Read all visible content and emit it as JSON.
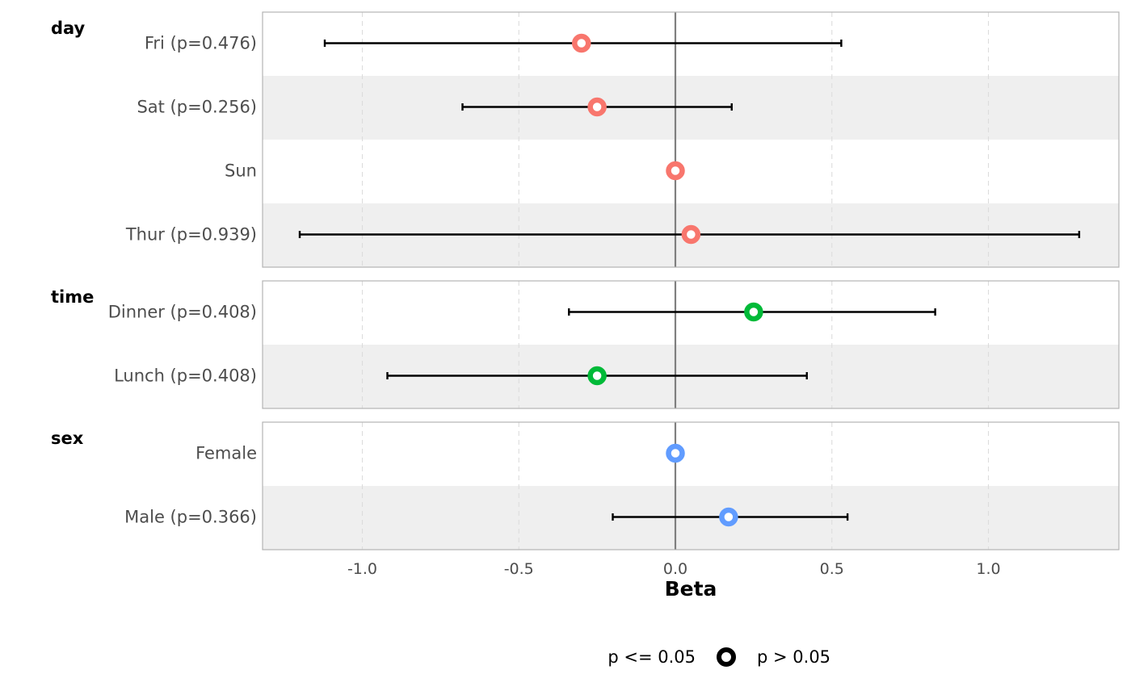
{
  "chart_data": {
    "type": "scatter",
    "subtype": "forest",
    "xlabel": "Beta",
    "xlim": [
      -1.32,
      1.42
    ],
    "x_ticks": [
      -1.0,
      -0.5,
      0.0,
      0.5,
      1.0
    ],
    "x_tick_labels": [
      "-1.0",
      "-0.5",
      "0.0",
      "0.5",
      "1.0"
    ],
    "reference_line": 0,
    "grid": "vertical dashed",
    "alternating_row_shading": true,
    "groups": [
      {
        "name": "day",
        "color": "#f8766d",
        "rows": [
          {
            "label": "Fri (p=0.476)",
            "estimate": -0.3,
            "lower": -1.12,
            "upper": 0.53
          },
          {
            "label": "Sat (p=0.256)",
            "estimate": -0.25,
            "lower": -0.68,
            "upper": 0.18
          },
          {
            "label": "Sun",
            "estimate": 0.0,
            "lower": null,
            "upper": null
          },
          {
            "label": "Thur (p=0.939)",
            "estimate": 0.05,
            "lower": -1.2,
            "upper": 1.29
          }
        ]
      },
      {
        "name": "time",
        "color": "#00ba38",
        "rows": [
          {
            "label": "Dinner (p=0.408)",
            "estimate": 0.25,
            "lower": -0.34,
            "upper": 0.83
          },
          {
            "label": "Lunch (p=0.408)",
            "estimate": -0.25,
            "lower": -0.92,
            "upper": 0.42
          }
        ]
      },
      {
        "name": "sex",
        "color": "#619cff",
        "rows": [
          {
            "label": "Female",
            "estimate": 0.0,
            "lower": null,
            "upper": null
          },
          {
            "label": "Male (p=0.366)",
            "estimate": 0.17,
            "lower": -0.2,
            "upper": 0.55
          }
        ]
      }
    ],
    "legend": {
      "position": "bottom",
      "items": [
        {
          "label": "p <= 0.05",
          "marker": "filled"
        },
        {
          "label": "p > 0.05",
          "marker": "hollow"
        }
      ]
    }
  }
}
